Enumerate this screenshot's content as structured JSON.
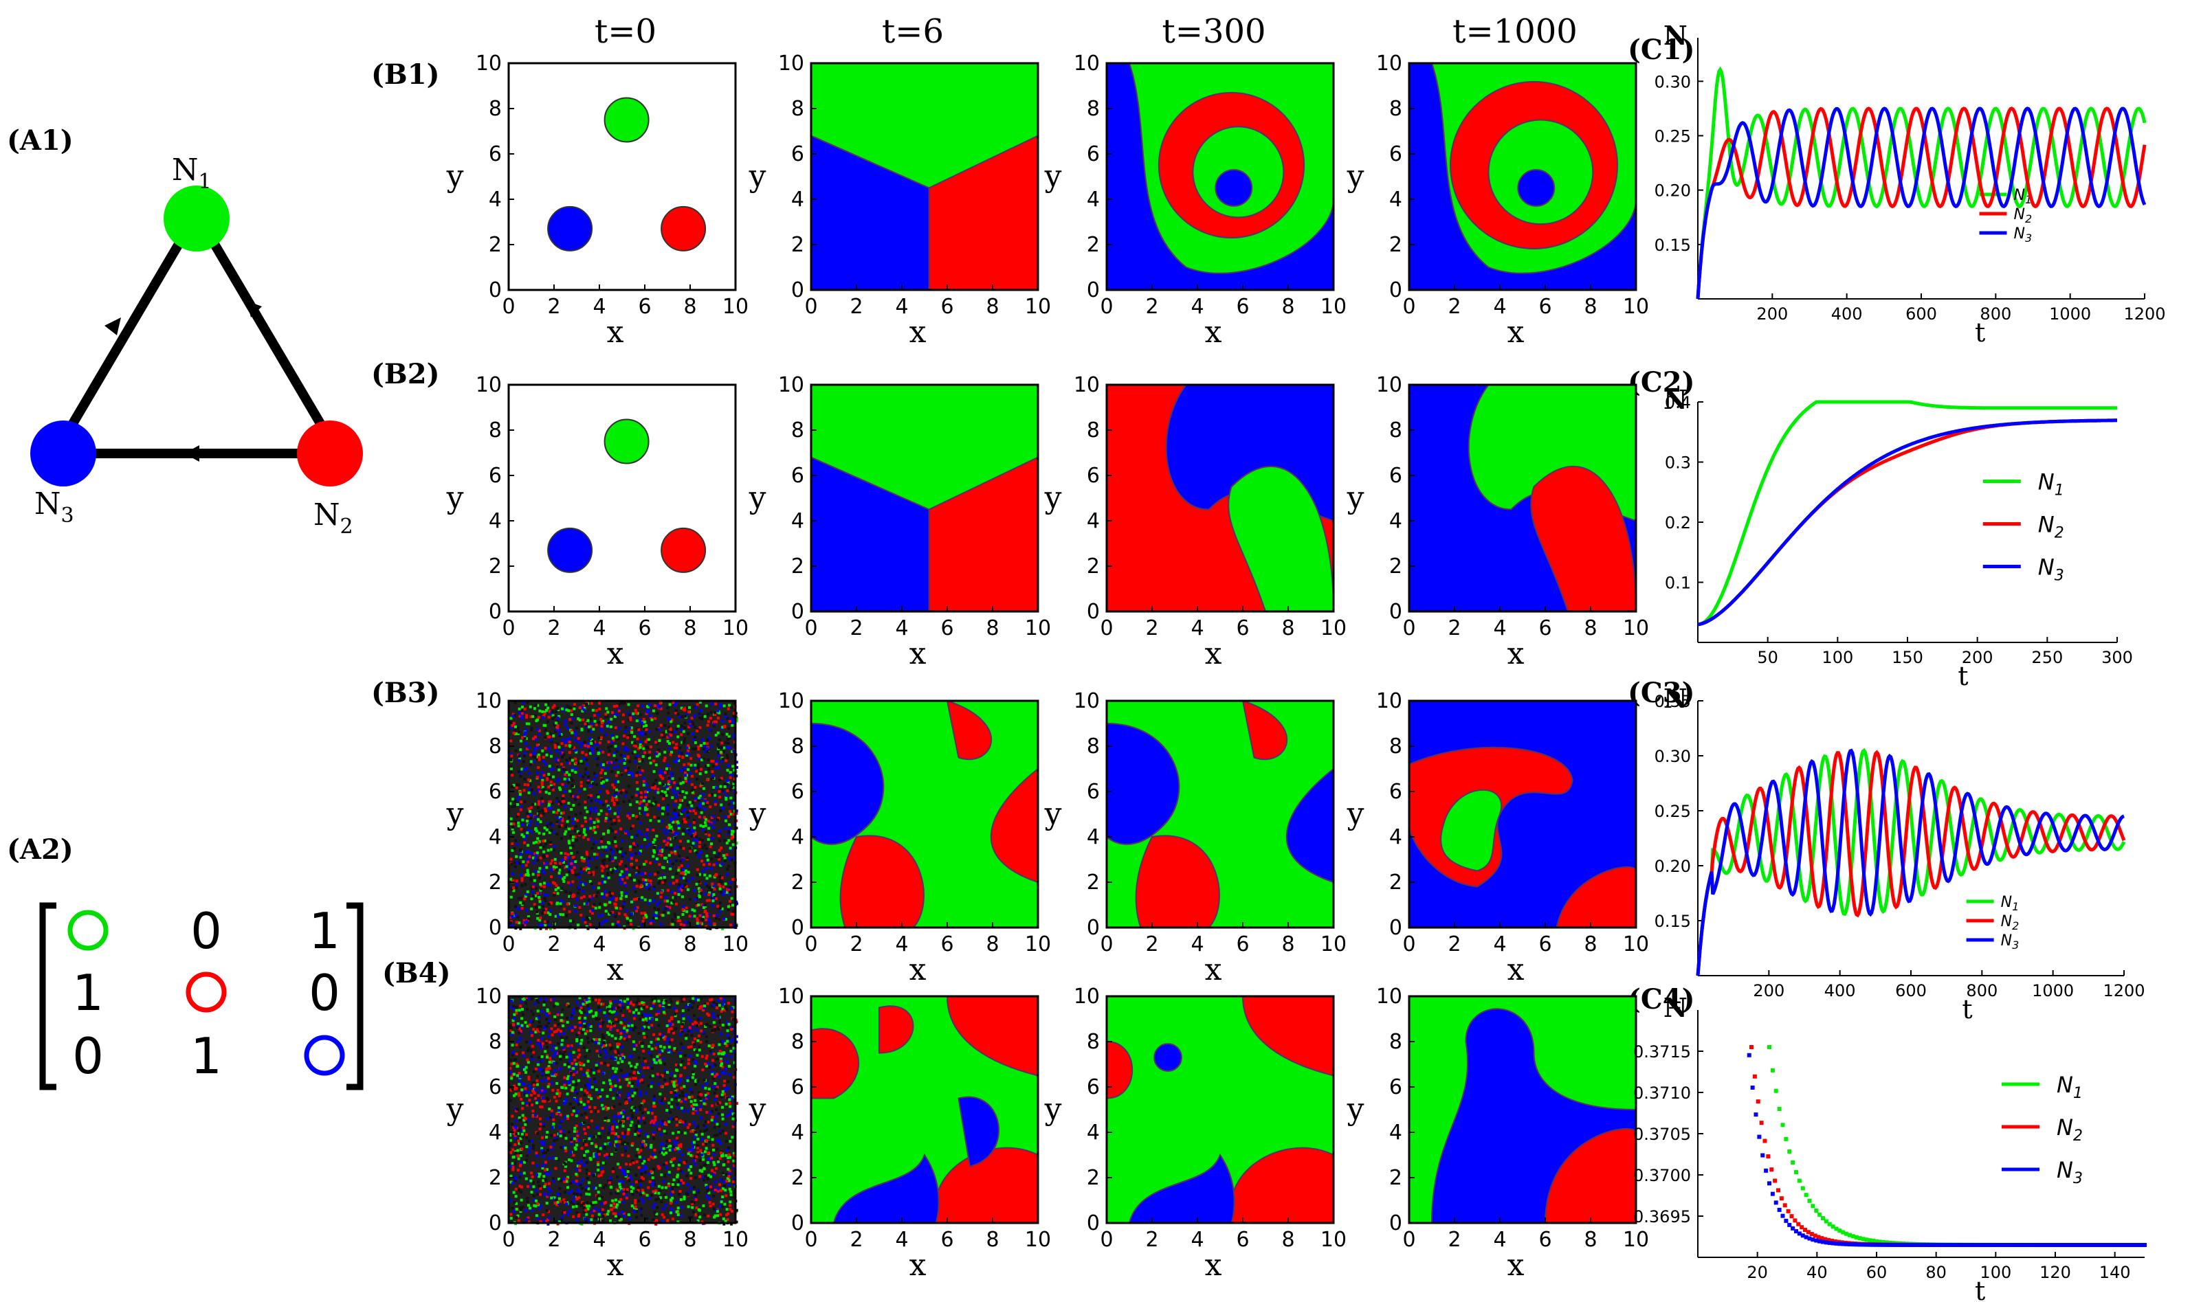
{
  "panel_labels": {
    "A1": "(A1)",
    "A2": "(A2)",
    "B1": "(B1)",
    "B2": "(B2)",
    "B3": "(B3)",
    "B4": "(B4)",
    "C1": "(C1)",
    "C2": "(C2)",
    "C3": "(C3)",
    "C4": "(C4)"
  },
  "column_titles": [
    "t=0",
    "t=6",
    "t=300",
    "t=1000"
  ],
  "graph": {
    "nodes": [
      {
        "id": "N1",
        "label": "N",
        "sub": "1",
        "color": "#00ee00"
      },
      {
        "id": "N2",
        "label": "N",
        "sub": "2",
        "color": "#ff0000"
      },
      {
        "id": "N3",
        "label": "N",
        "sub": "3",
        "color": "#0000ff"
      }
    ],
    "edges": [
      [
        "N1",
        "N2"
      ],
      [
        "N2",
        "N3"
      ],
      [
        "N3",
        "N1"
      ]
    ]
  },
  "matrix": {
    "rows": [
      [
        {
          "circle": "#00dd00"
        },
        {
          "text": "0"
        },
        {
          "text": "1"
        }
      ],
      [
        {
          "text": "1"
        },
        {
          "circle": "#ff0000"
        },
        {
          "text": "0"
        }
      ],
      [
        {
          "text": "0"
        },
        {
          "text": "1"
        },
        {
          "circle": "#0000ff"
        }
      ]
    ]
  },
  "maps": {
    "xlabel": "x",
    "ylabel": "y",
    "ticks": [
      "0",
      "2",
      "4",
      "6",
      "8",
      "10"
    ]
  },
  "chart_data": [
    {
      "type": "line",
      "id": "C1",
      "ylabel": "N",
      "xlabel": "t",
      "xlim": [
        0,
        1200
      ],
      "ylim": [
        0.1,
        0.34
      ],
      "xticks": [
        "200",
        "400",
        "600",
        "800",
        "1000",
        "1200"
      ],
      "yticks": [
        "0.15",
        "0.20",
        "0.25",
        "0.30"
      ],
      "series": [
        {
          "name": "N",
          "sub": "1",
          "color": "#00ee00"
        },
        {
          "name": "N",
          "sub": "2",
          "color": "#ff0000"
        },
        {
          "name": "N",
          "sub": "3",
          "color": "#0000ff"
        }
      ]
    },
    {
      "type": "line",
      "id": "C2",
      "ylabel": "N",
      "xlabel": "t",
      "xlim": [
        0,
        300
      ],
      "ylim": [
        0,
        0.4
      ],
      "xticks": [
        "50",
        "100",
        "150",
        "200",
        "250",
        "300"
      ],
      "yticks": [
        "0.1",
        "0.2",
        "0.3",
        "0.4"
      ],
      "series": [
        {
          "name": "N",
          "sub": "1",
          "color": "#00ee00"
        },
        {
          "name": "N",
          "sub": "2",
          "color": "#ff0000"
        },
        {
          "name": "N",
          "sub": "3",
          "color": "#0000ff"
        }
      ]
    },
    {
      "type": "line",
      "id": "C3",
      "ylabel": "N",
      "xlabel": "t",
      "xlim": [
        0,
        1200
      ],
      "ylim": [
        0.1,
        0.35
      ],
      "xticks": [
        "200",
        "400",
        "600",
        "800",
        "1000",
        "1200"
      ],
      "yticks": [
        "0.15",
        "0.20",
        "0.25",
        "0.30",
        "0.35"
      ],
      "series": [
        {
          "name": "N",
          "sub": "1",
          "color": "#00ee00"
        },
        {
          "name": "N",
          "sub": "2",
          "color": "#ff0000"
        },
        {
          "name": "N",
          "sub": "3",
          "color": "#0000ff"
        }
      ]
    },
    {
      "type": "scatter",
      "id": "C4",
      "ylabel": "N",
      "xlabel": "t",
      "xlim": [
        0,
        150
      ],
      "ylim": [
        0.369,
        0.372
      ],
      "xticks": [
        "20",
        "40",
        "60",
        "80",
        "100",
        "120",
        "140"
      ],
      "yticks": [
        "0.3695",
        "0.3700",
        "0.3705",
        "0.3710",
        "0.3715"
      ],
      "series": [
        {
          "name": "N",
          "sub": "1",
          "color": "#00ee00"
        },
        {
          "name": "N",
          "sub": "2",
          "color": "#ff0000"
        },
        {
          "name": "N",
          "sub": "3",
          "color": "#0000ff"
        }
      ]
    }
  ]
}
